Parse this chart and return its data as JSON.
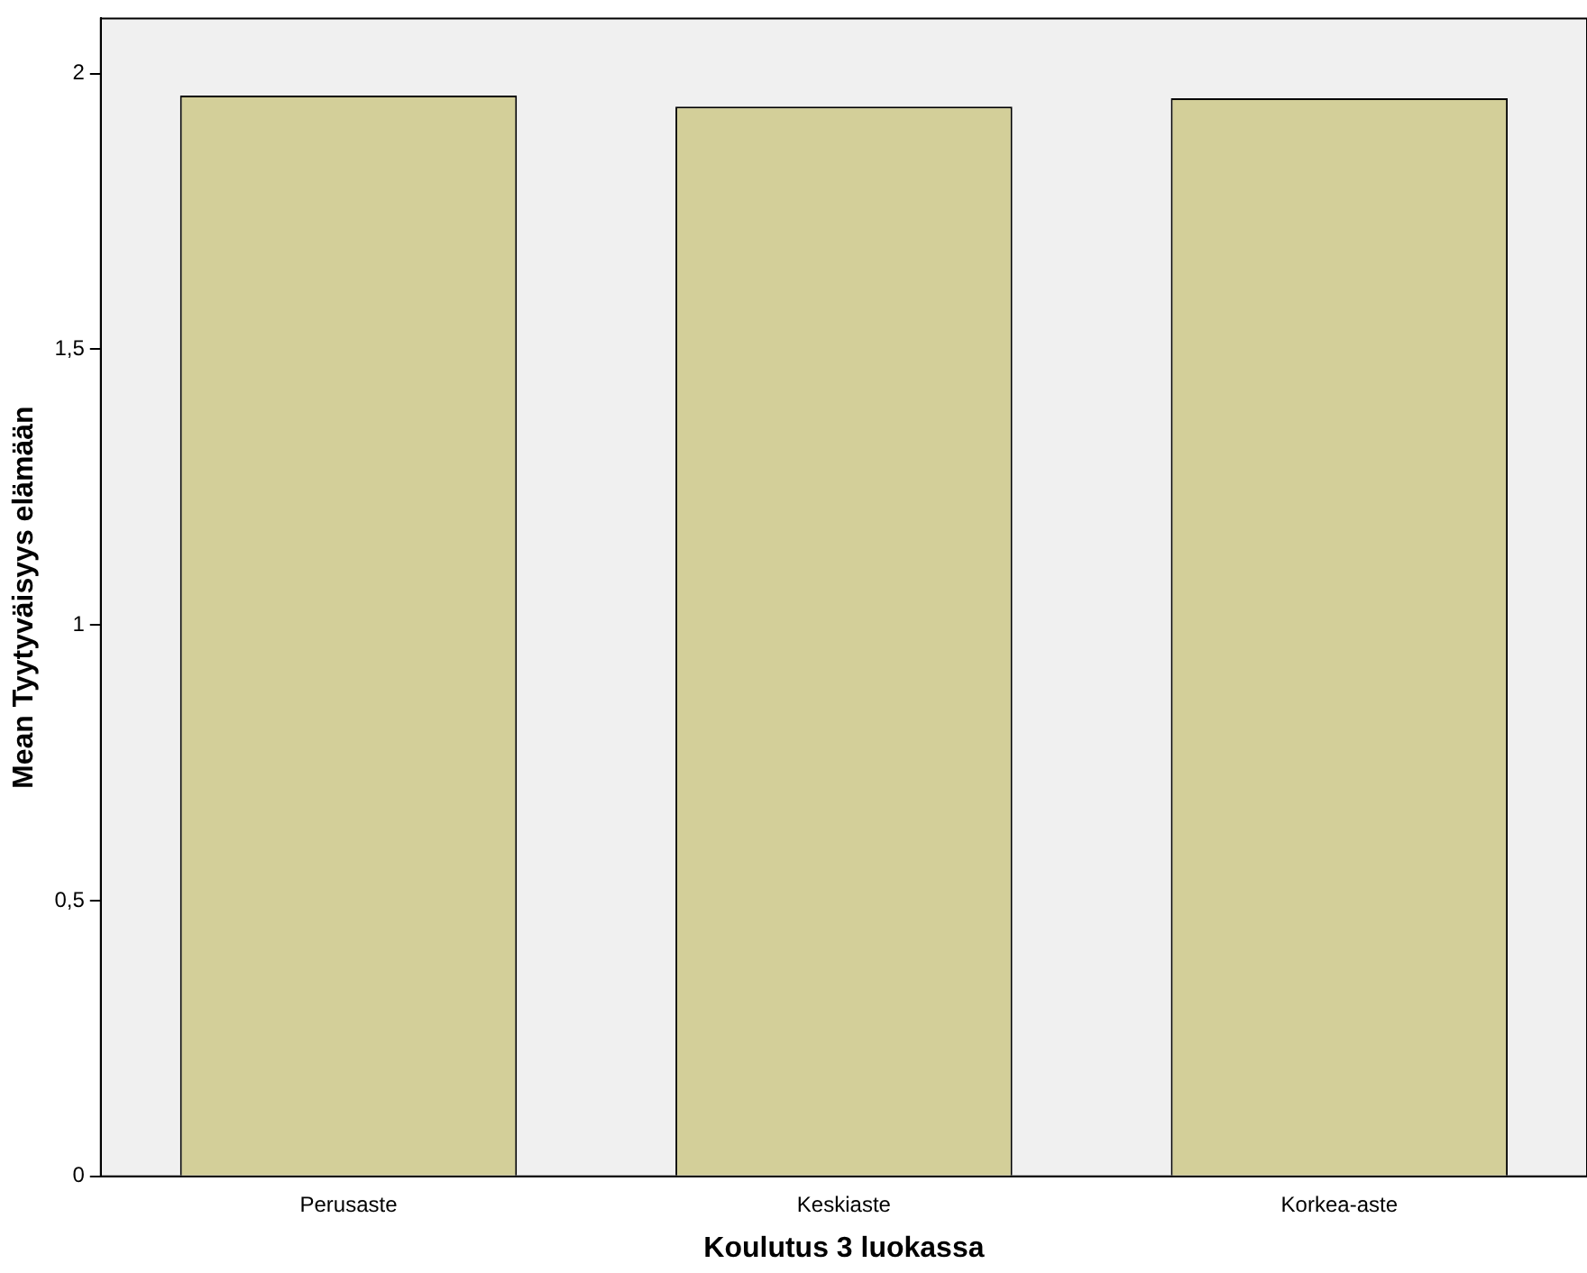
{
  "chart_data": {
    "type": "bar",
    "xlabel": "Koulutus 3 luokassa",
    "ylabel": "Mean Tyytyväisyys elämään",
    "categories": [
      "Perusaste",
      "Keskiaste",
      "Korkea-aste"
    ],
    "values": [
      1.96,
      1.94,
      1.955
    ],
    "color": "#d3cf99",
    "ylim": [
      0,
      2.1
    ],
    "yticks": [
      {
        "value": 0,
        "label": "0"
      },
      {
        "value": 0.5,
        "label": "0,5"
      },
      {
        "value": 1,
        "label": "1"
      },
      {
        "value": 1.5,
        "label": "1,5"
      },
      {
        "value": 2,
        "label": "2"
      }
    ],
    "grid": false,
    "legend": false
  }
}
